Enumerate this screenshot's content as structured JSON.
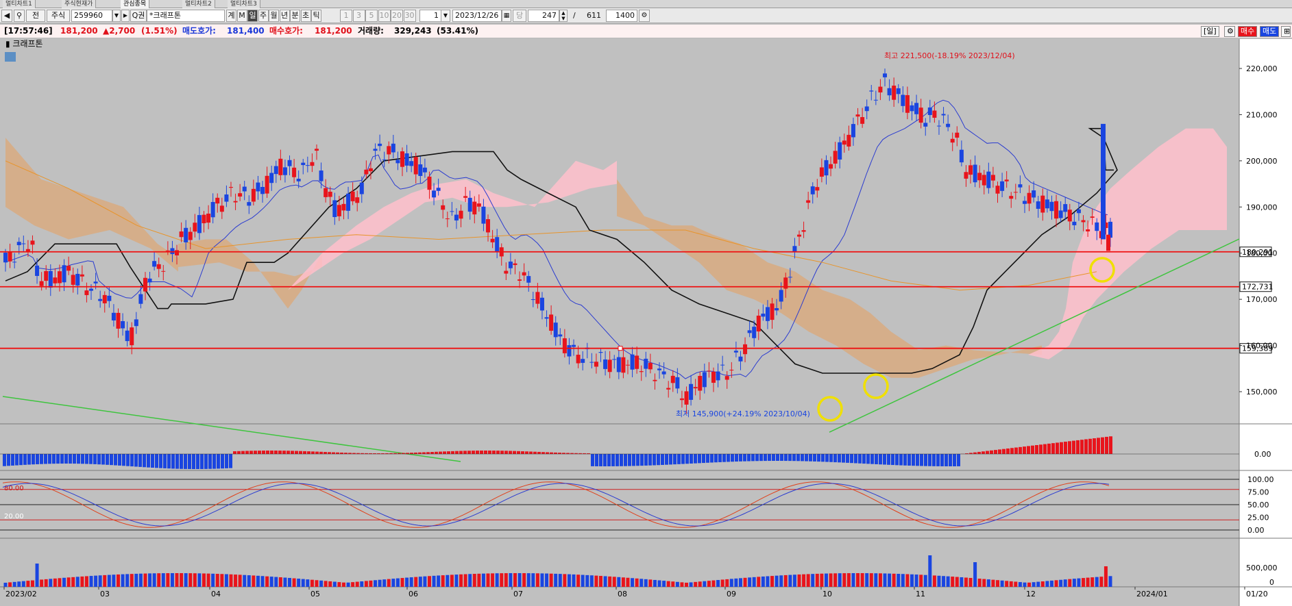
{
  "tabs": [
    "멀티차트1",
    "주식현재가",
    "관심종목",
    "멀티차트2",
    "멀티차트3"
  ],
  "toolbar": {
    "type_label": "전",
    "market": "주식",
    "code": "259960",
    "search_label": "Q권",
    "name": "*크래프톤",
    "period_buttons": [
      "계",
      "M",
      "일",
      "주",
      "월",
      "년",
      "분",
      "초",
      "틱"
    ],
    "active_period": "일",
    "tick_buttons": [
      "1",
      "3",
      "5",
      "10",
      "20",
      "30"
    ],
    "multiplier": "1",
    "date": "2023/12/26",
    "count": "247",
    "slash": "/",
    "total": "611",
    "display_count": "1400"
  },
  "status": {
    "time": "[17:57:46]",
    "price": "181,200",
    "change": "▲2,700",
    "change_pct": "(1.51%)",
    "ask_label": "매도호가:",
    "ask_value": "181,400",
    "bid_label": "매수호가:",
    "bid_value": "181,200",
    "volume_label": "거래량:",
    "volume_value": "329,243",
    "volume_pct": "(53.41%)",
    "day_button": "[일]",
    "buy_button": "매수",
    "sell_button": "매도"
  },
  "chart_title": "크래프톤",
  "chart_data": {
    "type": "candlestick",
    "price_axis": {
      "ticks": [
        "220,000",
        "210,000",
        "200,000",
        "190,000",
        "180,000",
        "170,000",
        "160,000",
        "150,000"
      ],
      "tick_values": [
        220000,
        210000,
        200000,
        190000,
        180000,
        170000,
        160000,
        150000
      ],
      "range": [
        140000,
        227000
      ]
    },
    "x_axis": {
      "labels": [
        "2023/02",
        "03",
        "04",
        "05",
        "06",
        "07",
        "08",
        "09",
        "10",
        "11",
        "12",
        "2024/01",
        "01/20"
      ]
    },
    "annotations": {
      "high": "최고 221,500(-18.19% 2023/12/04)",
      "low": "최저 145,900(+24.19% 2023/10/04)"
    },
    "horizontal_lines": [
      {
        "label": "180,291",
        "value": 180291
      },
      {
        "label": "172,731",
        "value": 172731
      },
      {
        "label": "159,389",
        "value": 159389
      }
    ],
    "macd_axis": {
      "ticks": [
        "0.00"
      ]
    },
    "stoch_axis": {
      "ticks": [
        "100.00",
        "75.00",
        "50.00",
        "25.00",
        "0.00"
      ],
      "levels": [
        "80.00",
        "20.00"
      ]
    },
    "volume_axis": {
      "ticks": [
        "500,000",
        "0"
      ]
    },
    "colors": {
      "up": "#e8141c",
      "down": "#1a45e0",
      "support": "#ee1111",
      "trend": "#3ec43e",
      "cloud_bull": "#ffc0cb",
      "cloud_bear": "#d8aa80",
      "highlight": "#f0e000"
    }
  }
}
